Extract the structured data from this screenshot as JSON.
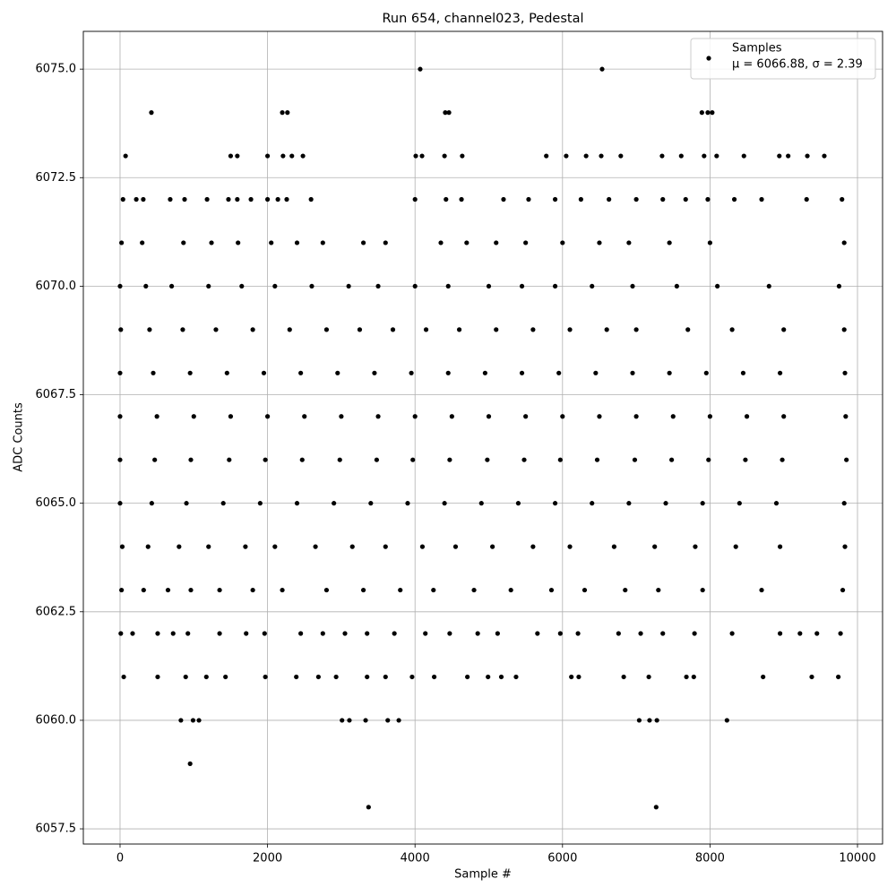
{
  "chart_data": {
    "type": "scatter",
    "title": "Run 654, channel023, Pedestal",
    "x_label": "Sample #",
    "y_label": "ADC Counts",
    "xlim": [
      -498,
      10340
    ],
    "ylim": [
      6057.15,
      6075.87
    ],
    "xticks": [
      0,
      2000,
      4000,
      6000,
      8000,
      10000
    ],
    "yticks": [
      6057.5,
      {
        "value": 6060,
        "label": "6060.0"
      },
      6062.5,
      {
        "value": 6065,
        "label": "6065.0"
      },
      6067.5,
      {
        "value": 6070,
        "label": "6070.0"
      },
      6072.5,
      {
        "value": 6075,
        "label": "6075.0"
      }
    ],
    "grid": true,
    "legend_position": "upper right",
    "legend_note": "μ = 6066.88, σ = 2.39",
    "x": [
      4070,
      6537,
      425,
      2200,
      2270,
      4410,
      4460,
      7890,
      7970,
      8030,
      75,
      1500,
      1590,
      2000,
      2210,
      2330,
      2480,
      4010,
      4095,
      4400,
      4640,
      5780,
      6050,
      6320,
      6525,
      6790,
      7350,
      7610,
      7920,
      8090,
      8460,
      8940,
      9060,
      9320,
      9550,
      40,
      220,
      315,
      680,
      875,
      1180,
      1470,
      1590,
      1775,
      2000,
      2140,
      2260,
      2590,
      4000,
      4420,
      4630,
      5200,
      5540,
      5900,
      6250,
      6630,
      7000,
      7360,
      7670,
      7970,
      8330,
      8700,
      9310,
      9790,
      950,
      3370,
      7270,
      825,
      990,
      1070,
      3010,
      3110,
      3330,
      3630,
      3780,
      7040,
      7180,
      7280,
      8230,
      50,
      510,
      890,
      1170,
      1430,
      1970,
      2390,
      2690,
      2930,
      3350,
      3600,
      3960,
      4260,
      4710,
      4990,
      5170,
      5370,
      6120,
      6220,
      6830,
      7170,
      7680,
      7780,
      8720,
      9380,
      9740,
      10,
      170,
      510,
      720,
      920,
      1350,
      1710,
      1960,
      2450,
      2750,
      3050,
      3350,
      3720,
      4140,
      4470,
      4850,
      5120,
      5660,
      5970,
      6210,
      6760,
      7060,
      7360,
      7790,
      8300,
      8950,
      9220,
      9450,
      9770,
      20,
      300,
      860,
      1240,
      1600,
      2050,
      2400,
      2750,
      3300,
      3600,
      4350,
      4700,
      5100,
      5500,
      6000,
      6500,
      6900,
      7450,
      8000,
      9820,
      0,
      350,
      700,
      1200,
      1650,
      2100,
      2600,
      3100,
      3500,
      4000,
      4450,
      5000,
      5450,
      5900,
      6400,
      6950,
      7550,
      8100,
      8800,
      9750,
      10,
      400,
      850,
      1300,
      1800,
      2300,
      2800,
      3250,
      3700,
      4150,
      4600,
      5100,
      5600,
      6100,
      6600,
      7000,
      7700,
      8300,
      9000,
      9820,
      0,
      450,
      950,
      1450,
      1950,
      2450,
      2950,
      3450,
      3950,
      4450,
      4950,
      5450,
      5950,
      6450,
      6950,
      7450,
      7950,
      8450,
      8950,
      9830,
      0,
      500,
      1000,
      1500,
      2000,
      2500,
      3000,
      3500,
      4000,
      4500,
      5000,
      5500,
      6000,
      6500,
      7000,
      7500,
      8000,
      8500,
      9000,
      9840,
      0,
      470,
      960,
      1480,
      1970,
      2470,
      2980,
      3480,
      3970,
      4470,
      4980,
      5480,
      5970,
      6470,
      6980,
      7480,
      7980,
      8480,
      8980,
      9850,
      0,
      430,
      900,
      1400,
      1900,
      2400,
      2900,
      3400,
      3900,
      4400,
      4900,
      5400,
      5900,
      6400,
      6900,
      7400,
      7900,
      8400,
      8900,
      9820,
      30,
      380,
      800,
      1200,
      1700,
      2100,
      2650,
      3150,
      3600,
      4100,
      4550,
      5050,
      5600,
      6100,
      6700,
      7250,
      7800,
      8350,
      8950,
      9830,
      20,
      320,
      650,
      960,
      1350,
      1800,
      2200,
      2800,
      3300,
      3800,
      4250,
      4800,
      5300,
      5850,
      6300,
      6850,
      7300,
      7900,
      8700,
      9800
    ],
    "series": [
      {
        "name": "Samples",
        "color": "#000000",
        "values": [
          6075,
          6075,
          6074,
          6074,
          6074,
          6074,
          6074,
          6074,
          6074,
          6074,
          6073,
          6073,
          6073,
          6073,
          6073,
          6073,
          6073,
          6073,
          6073,
          6073,
          6073,
          6073,
          6073,
          6073,
          6073,
          6073,
          6073,
          6073,
          6073,
          6073,
          6073,
          6073,
          6073,
          6073,
          6073,
          6072,
          6072,
          6072,
          6072,
          6072,
          6072,
          6072,
          6072,
          6072,
          6072,
          6072,
          6072,
          6072,
          6072,
          6072,
          6072,
          6072,
          6072,
          6072,
          6072,
          6072,
          6072,
          6072,
          6072,
          6072,
          6072,
          6072,
          6072,
          6072,
          6059,
          6058,
          6058,
          6060,
          6060,
          6060,
          6060,
          6060,
          6060,
          6060,
          6060,
          6060,
          6060,
          6060,
          6060,
          6061,
          6061,
          6061,
          6061,
          6061,
          6061,
          6061,
          6061,
          6061,
          6061,
          6061,
          6061,
          6061,
          6061,
          6061,
          6061,
          6061,
          6061,
          6061,
          6061,
          6061,
          6061,
          6061,
          6061,
          6061,
          6061,
          6062,
          6062,
          6062,
          6062,
          6062,
          6062,
          6062,
          6062,
          6062,
          6062,
          6062,
          6062,
          6062,
          6062,
          6062,
          6062,
          6062,
          6062,
          6062,
          6062,
          6062,
          6062,
          6062,
          6062,
          6062,
          6062,
          6062,
          6062,
          6062,
          6071,
          6071,
          6071,
          6071,
          6071,
          6071,
          6071,
          6071,
          6071,
          6071,
          6071,
          6071,
          6071,
          6071,
          6071,
          6071,
          6071,
          6071,
          6071,
          6071,
          6070,
          6070,
          6070,
          6070,
          6070,
          6070,
          6070,
          6070,
          6070,
          6070,
          6070,
          6070,
          6070,
          6070,
          6070,
          6070,
          6070,
          6070,
          6070,
          6070,
          6069,
          6069,
          6069,
          6069,
          6069,
          6069,
          6069,
          6069,
          6069,
          6069,
          6069,
          6069,
          6069,
          6069,
          6069,
          6069,
          6069,
          6069,
          6069,
          6069,
          6068,
          6068,
          6068,
          6068,
          6068,
          6068,
          6068,
          6068,
          6068,
          6068,
          6068,
          6068,
          6068,
          6068,
          6068,
          6068,
          6068,
          6068,
          6068,
          6068,
          6067,
          6067,
          6067,
          6067,
          6067,
          6067,
          6067,
          6067,
          6067,
          6067,
          6067,
          6067,
          6067,
          6067,
          6067,
          6067,
          6067,
          6067,
          6067,
          6067,
          6066,
          6066,
          6066,
          6066,
          6066,
          6066,
          6066,
          6066,
          6066,
          6066,
          6066,
          6066,
          6066,
          6066,
          6066,
          6066,
          6066,
          6066,
          6066,
          6066,
          6065,
          6065,
          6065,
          6065,
          6065,
          6065,
          6065,
          6065,
          6065,
          6065,
          6065,
          6065,
          6065,
          6065,
          6065,
          6065,
          6065,
          6065,
          6065,
          6065,
          6064,
          6064,
          6064,
          6064,
          6064,
          6064,
          6064,
          6064,
          6064,
          6064,
          6064,
          6064,
          6064,
          6064,
          6064,
          6064,
          6064,
          6064,
          6064,
          6064,
          6063,
          6063,
          6063,
          6063,
          6063,
          6063,
          6063,
          6063,
          6063,
          6063,
          6063,
          6063,
          6063,
          6063,
          6063,
          6063,
          6063,
          6063,
          6063,
          6063
        ]
      }
    ]
  }
}
